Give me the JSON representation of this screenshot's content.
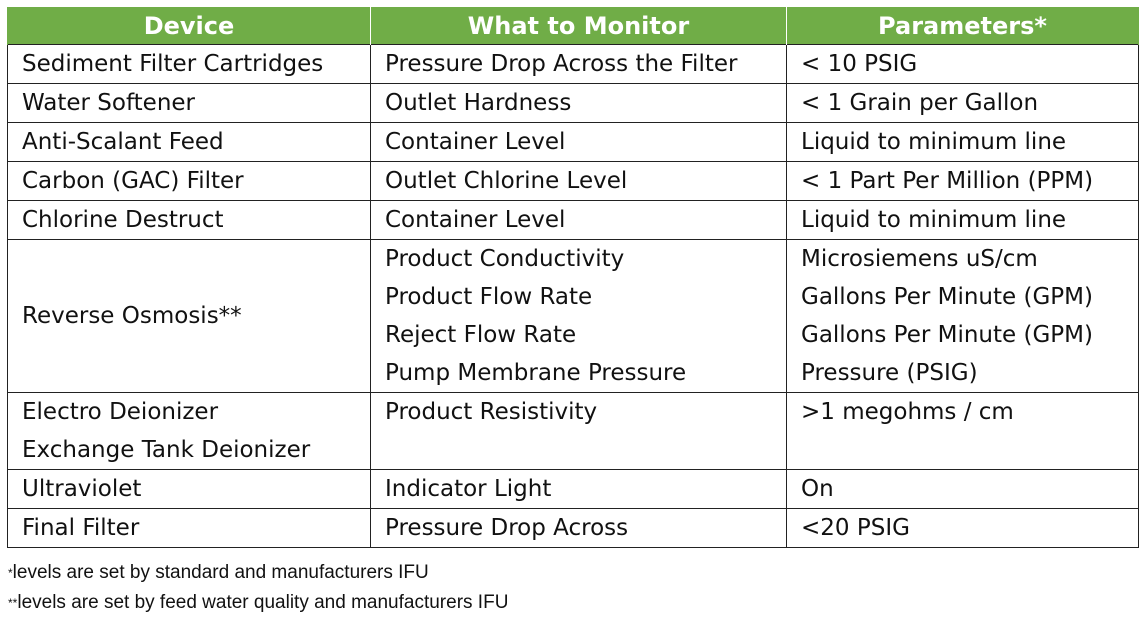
{
  "headers": {
    "device": "Device",
    "monitor": "What to Monitor",
    "parameters": "Parameters*"
  },
  "rows": [
    {
      "device": "Sediment Filter Cartridges",
      "monitor": "Pressure Drop Across the Filter",
      "parameter": "< 10 PSIG"
    },
    {
      "device": "Water Softener",
      "monitor": "Outlet Hardness",
      "parameter": "< 1 Grain per Gallon"
    },
    {
      "device": "Anti-Scalant Feed",
      "monitor": "Container Level",
      "parameter": "Liquid to minimum line"
    },
    {
      "device": "Carbon (GAC) Filter",
      "monitor": "Outlet Chlorine Level",
      "parameter": "< 1 Part Per Million (PPM)"
    },
    {
      "device": "Chlorine Destruct",
      "monitor": "Container Level",
      "parameter": "Liquid to minimum line"
    }
  ],
  "ro": {
    "device": "Reverse Osmosis**",
    "monitors": [
      "Product Conductivity",
      "Product Flow Rate",
      "Reject Flow Rate",
      "Pump Membrane Pressure"
    ],
    "parameters": [
      "Microsiemens uS/cm",
      "Gallons Per Minute (GPM)",
      "Gallons Per Minute (GPM)",
      "Pressure (PSIG)"
    ]
  },
  "deionizer": {
    "devices": [
      "Electro Deionizer",
      "Exchange Tank Deionizer"
    ],
    "monitor": "Product Resistivity",
    "parameter": ">1 megohms / cm"
  },
  "rows_end": [
    {
      "device": "Ultraviolet",
      "monitor": "Indicator Light",
      "parameter": "On"
    },
    {
      "device": "Final Filter",
      "monitor": "Pressure Drop Across",
      "parameter": "<20 PSIG"
    }
  ],
  "footnotes": [
    {
      "mark": "*",
      "text": "levels are set by standard and manufacturers IFU"
    },
    {
      "mark": "**",
      "text": "levels are set by feed water quality and manufacturers IFU"
    }
  ]
}
